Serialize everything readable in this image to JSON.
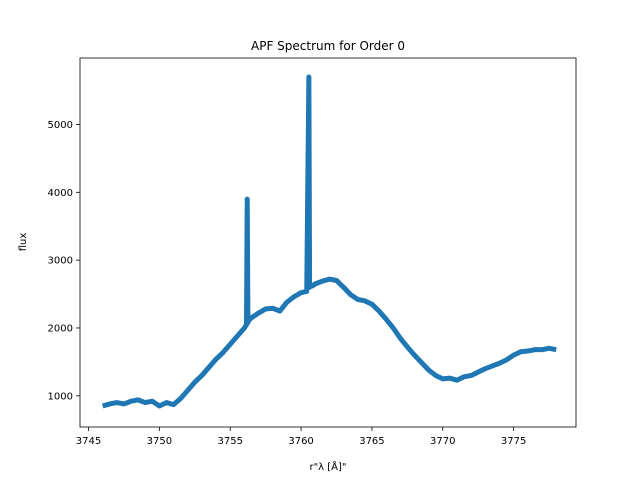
{
  "chart_data": {
    "type": "line",
    "title": "APF Spectrum for Order 0",
    "xlabel": "r\"λ [Å]\"",
    "ylabel": "flux",
    "xlim": [
      3744.4,
      3779.4
    ],
    "ylim": [
      540,
      5980
    ],
    "xticks": [
      3745,
      3750,
      3755,
      3760,
      3765,
      3770,
      3775
    ],
    "yticks": [
      1000,
      2000,
      3000,
      4000,
      5000
    ],
    "grid": false,
    "line_color": "#1f77b4",
    "series": [
      {
        "x": [
          3746.0,
          3746.5,
          3747.0,
          3747.5,
          3748.0,
          3748.5,
          3749.0,
          3749.5,
          3750.0,
          3750.5,
          3751.0,
          3751.5,
          3752.0,
          3752.5,
          3753.0,
          3753.5,
          3754.0,
          3754.5,
          3755.0,
          3755.5,
          3756.0,
          3756.15,
          3756.2,
          3756.25,
          3756.3,
          3756.5,
          3757.0,
          3757.5,
          3758.0,
          3758.5,
          3759.0,
          3759.5,
          3760.0,
          3760.4,
          3760.55,
          3760.6,
          3760.65,
          3760.8,
          3761.0,
          3761.5,
          3762.0,
          3762.5,
          3763.0,
          3763.5,
          3764.0,
          3764.5,
          3765.0,
          3765.5,
          3766.0,
          3766.5,
          3767.0,
          3767.5,
          3768.0,
          3768.5,
          3769.0,
          3769.5,
          3770.0,
          3770.5,
          3771.0,
          3771.5,
          3772.0,
          3772.5,
          3773.0,
          3773.5,
          3774.0,
          3774.5,
          3775.0,
          3775.5,
          3776.0,
          3776.5,
          3777.0,
          3777.5,
          3778.0
        ],
        "y": [
          850,
          880,
          900,
          880,
          920,
          940,
          900,
          920,
          850,
          900,
          870,
          960,
          1080,
          1200,
          1300,
          1420,
          1540,
          1640,
          1760,
          1880,
          2000,
          2050,
          3900,
          2080,
          2110,
          2150,
          2220,
          2280,
          2290,
          2250,
          2380,
          2460,
          2520,
          2540,
          5700,
          2600,
          2610,
          2620,
          2650,
          2690,
          2720,
          2700,
          2600,
          2490,
          2420,
          2400,
          2350,
          2250,
          2130,
          2000,
          1850,
          1720,
          1600,
          1490,
          1380,
          1300,
          1250,
          1260,
          1230,
          1280,
          1300,
          1350,
          1400,
          1440,
          1480,
          1530,
          1600,
          1650,
          1660,
          1680,
          1680,
          1700,
          1680
        ]
      }
    ]
  }
}
